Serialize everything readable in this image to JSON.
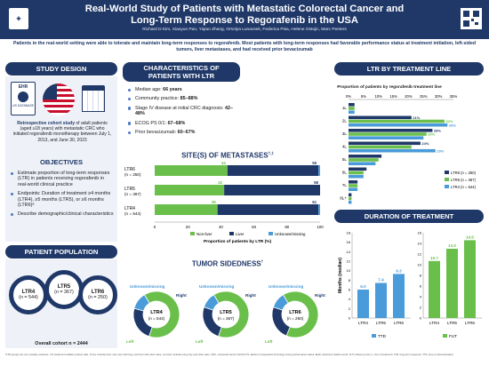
{
  "header": {
    "title_line1": "Real-World Study of Patients with Metastatic Colorectal Cancer and",
    "title_line2": "Long-Term Response to Regorafenib in the USA",
    "authors": "Richard D Kim, Xiaoyun Pan, Yiqiao Zhang, Orsolya Lunacsek, Federica Pisa, Helene Ostojic, Marc Peeters"
  },
  "summary": "Patients in the real-world setting were able to tolerate and maintain long-term responses to regorafenib. Most patients with long-term responses had favorable performance status at treatment initiation, left-sided tumors, liver metastases, and had received prior bevacizumab",
  "study_design": {
    "heading": "STUDY DESIGN",
    "ehr_label": "EHR",
    "db_label": "US DATABASE",
    "cohort_bold": "Retrospective cohort study",
    "cohort_text": " of adult patients (aged ≥18 years) with metastatic CRC who initiated regorafenib monotherapy between July 1, 2013, and June 30, 2023"
  },
  "objectives": {
    "heading": "OBJECTIVES",
    "items": [
      "Estimate proportion of long-term responses (LTR) in patients receiving regorafenib in real-world clinical practice",
      "Endpoints: Duration of treatment ≥4 months (LTR4), ≥5 months (LTR5), or ≥6 months (LTR6)ᵃ",
      "Describe demographic/clinical characteristics"
    ]
  },
  "population": {
    "heading": "PATIENT POPULATION",
    "rings": [
      {
        "name": "LTR4",
        "n": "(n = 544)"
      },
      {
        "name": "LTR5",
        "n": "(n = 367)"
      },
      {
        "name": "LTR6",
        "n": "(n = 250)"
      }
    ],
    "overall": "Overall cohort n = 2444"
  },
  "characteristics": {
    "heading_line1": "CHARACTERISTICS OF",
    "heading_line2": "PATIENTS WITH LTR",
    "items": [
      {
        "label": "Median age: ",
        "value": "66 years"
      },
      {
        "label": "Community practice: ",
        "value": "85–88%"
      },
      {
        "label": "Stage IV disease at initial CRC diagnosis: ",
        "value": "42–48%"
      },
      {
        "label": "ECOG PS 0/1: ",
        "value": "67–68%"
      },
      {
        "label": "Prior bevacizumab: ",
        "value": "60–67%"
      }
    ]
  },
  "metastases": {
    "heading": "SITE(S) OF METASTASES",
    "heading_sup": "†,‡",
    "axis_label": "Proportion of patients by LTR (%)",
    "legend": [
      "Non-liver",
      "Liver",
      "Unknown/missing"
    ]
  },
  "sidedness": {
    "heading": "TUMOR SIDEDNESS",
    "heading_sup": "†",
    "labels": {
      "unknown": "Unknown/missing",
      "right": "Right",
      "left": "Left"
    }
  },
  "ltr_line": {
    "heading": "LTR BY TREATMENT LINE",
    "chart_title": "Proportion of patients by regorafenib treatment line",
    "lines": [
      "1L",
      "2L",
      "3L",
      "4L",
      "5L",
      "6L",
      "7L",
      "8L+"
    ],
    "legend": [
      "LTR6 (n = 250)",
      "LTR5 (n = 367)",
      "LTR4 (n = 544)"
    ]
  },
  "duration": {
    "heading": "DURATION OF TREATMENT",
    "ylabel": "Months (median)",
    "legend_ttd": "TTD",
    "legend_fut": "FUT"
  },
  "footnote": "ᵃLTR groups are not mutually exclusive. †At treatment initiation (index) date. ‡Liver includes liver only, liver with lung, and liver with other sites; non-liver includes lung only and other sites. CRC, colorectal cancer; ECOG PS, Eastern Cooperative Oncology Group performance status; EHR, electronic health record; FUT, follow-up time; L, line of treatment; LTR, long-term response; TTD, time to discontinuation",
  "colors": {
    "navy": "#1f3868",
    "green": "#6abf4b",
    "blue": "#4a9bd9",
    "pale": "#eef2f8"
  },
  "chart_data": [
    {
      "type": "bar",
      "title": "SITE(S) OF METASTASES",
      "orientation": "horizontal",
      "stacked": true,
      "categories": [
        "LTR6 (n = 250)",
        "LTR5 (n = 367)",
        "LTR4 (n = 544)"
      ],
      "series": [
        {
          "name": "Non-liver",
          "values": [
            44,
            42,
            38
          ]
        },
        {
          "name": "Liver",
          "values": [
            55,
            58,
            61
          ]
        },
        {
          "name": "Unknown/missing",
          "values": [
            1,
            0,
            1
          ]
        }
      ],
      "xlim": [
        0,
        100
      ],
      "xticks": [
        0,
        20,
        40,
        60,
        80,
        100
      ],
      "xlabel": "Proportion of patients by LTR (%)",
      "legend_position": "bottom"
    },
    {
      "type": "bar",
      "title": "Proportion of patients by regorafenib treatment line",
      "orientation": "horizontal",
      "categories": [
        "1L",
        "2L",
        "3L",
        "4L",
        "5L",
        "6L",
        "7L",
        "8L+"
      ],
      "series": [
        {
          "name": "LTR6 (n = 250)",
          "values": [
            2,
            21,
            28,
            24,
            11,
            6,
            3,
            1
          ]
        },
        {
          "name": "LTR5 (n = 367)",
          "values": [
            2,
            32,
            26,
            21,
            10,
            5,
            3,
            1
          ]
        },
        {
          "name": "LTR4 (n = 544)",
          "values": [
            2,
            33,
            25,
            29,
            9,
            5,
            3,
            1
          ]
        }
      ],
      "labeled_values": [
        {
          "line": "2L",
          "series": "LTR6 (n = 250)",
          "label": "21%"
        },
        {
          "line": "2L",
          "series": "LTR5 (n = 367)",
          "label": "32%"
        },
        {
          "line": "2L",
          "series": "LTR4 (n = 544)",
          "label": "33%"
        },
        {
          "line": "3L",
          "series": "LTR6 (n = 250)",
          "label": "28%"
        },
        {
          "line": "3L",
          "series": "LTR5 (n = 367)",
          "label": "26%"
        },
        {
          "line": "4L",
          "series": "LTR6 (n = 250)",
          "label": "24%"
        },
        {
          "line": "4L",
          "series": "LTR4 (n = 544)",
          "label": "29%"
        }
      ],
      "xlim": [
        0,
        35
      ],
      "xticks": [
        "0%",
        "5%",
        "10%",
        "15%",
        "20%",
        "25%",
        "30%",
        "35%"
      ],
      "legend_position": "right"
    },
    {
      "type": "pie",
      "title": "LTR4 (n = 544)",
      "slices": [
        {
          "name": "Left",
          "value": 64
        },
        {
          "name": "Right",
          "value": 24
        },
        {
          "name": "Unknown/missing",
          "value": 12
        }
      ]
    },
    {
      "type": "pie",
      "title": "LTR5 (n = 367)",
      "slices": [
        {
          "name": "Left",
          "value": 64
        },
        {
          "name": "Right",
          "value": 25
        },
        {
          "name": "Unknown/missing",
          "value": 11
        }
      ]
    },
    {
      "type": "pie",
      "title": "LTR6 (n = 250)",
      "slices": [
        {
          "name": "Left",
          "value": 65
        },
        {
          "name": "Right",
          "value": 24
        },
        {
          "name": "Unknown/missing",
          "value": 11
        }
      ]
    },
    {
      "type": "bar",
      "title": "TTD",
      "categories": [
        "LTR4",
        "LTR5",
        "LTR6"
      ],
      "values": [
        6.0,
        7.4,
        9.3
      ],
      "ylim": [
        0,
        18
      ],
      "yticks": [
        0,
        2,
        4,
        6,
        8,
        10,
        12,
        14,
        16,
        18
      ],
      "ylabel": "Months (median)"
    },
    {
      "type": "bar",
      "title": "FUT",
      "categories": [
        "LTR4",
        "LTR5",
        "LTR6"
      ],
      "values": [
        10.7,
        13.0,
        14.6
      ],
      "ylim": [
        0,
        16
      ],
      "yticks": [
        0,
        2,
        4,
        6,
        8,
        10,
        12,
        14,
        16
      ]
    }
  ]
}
